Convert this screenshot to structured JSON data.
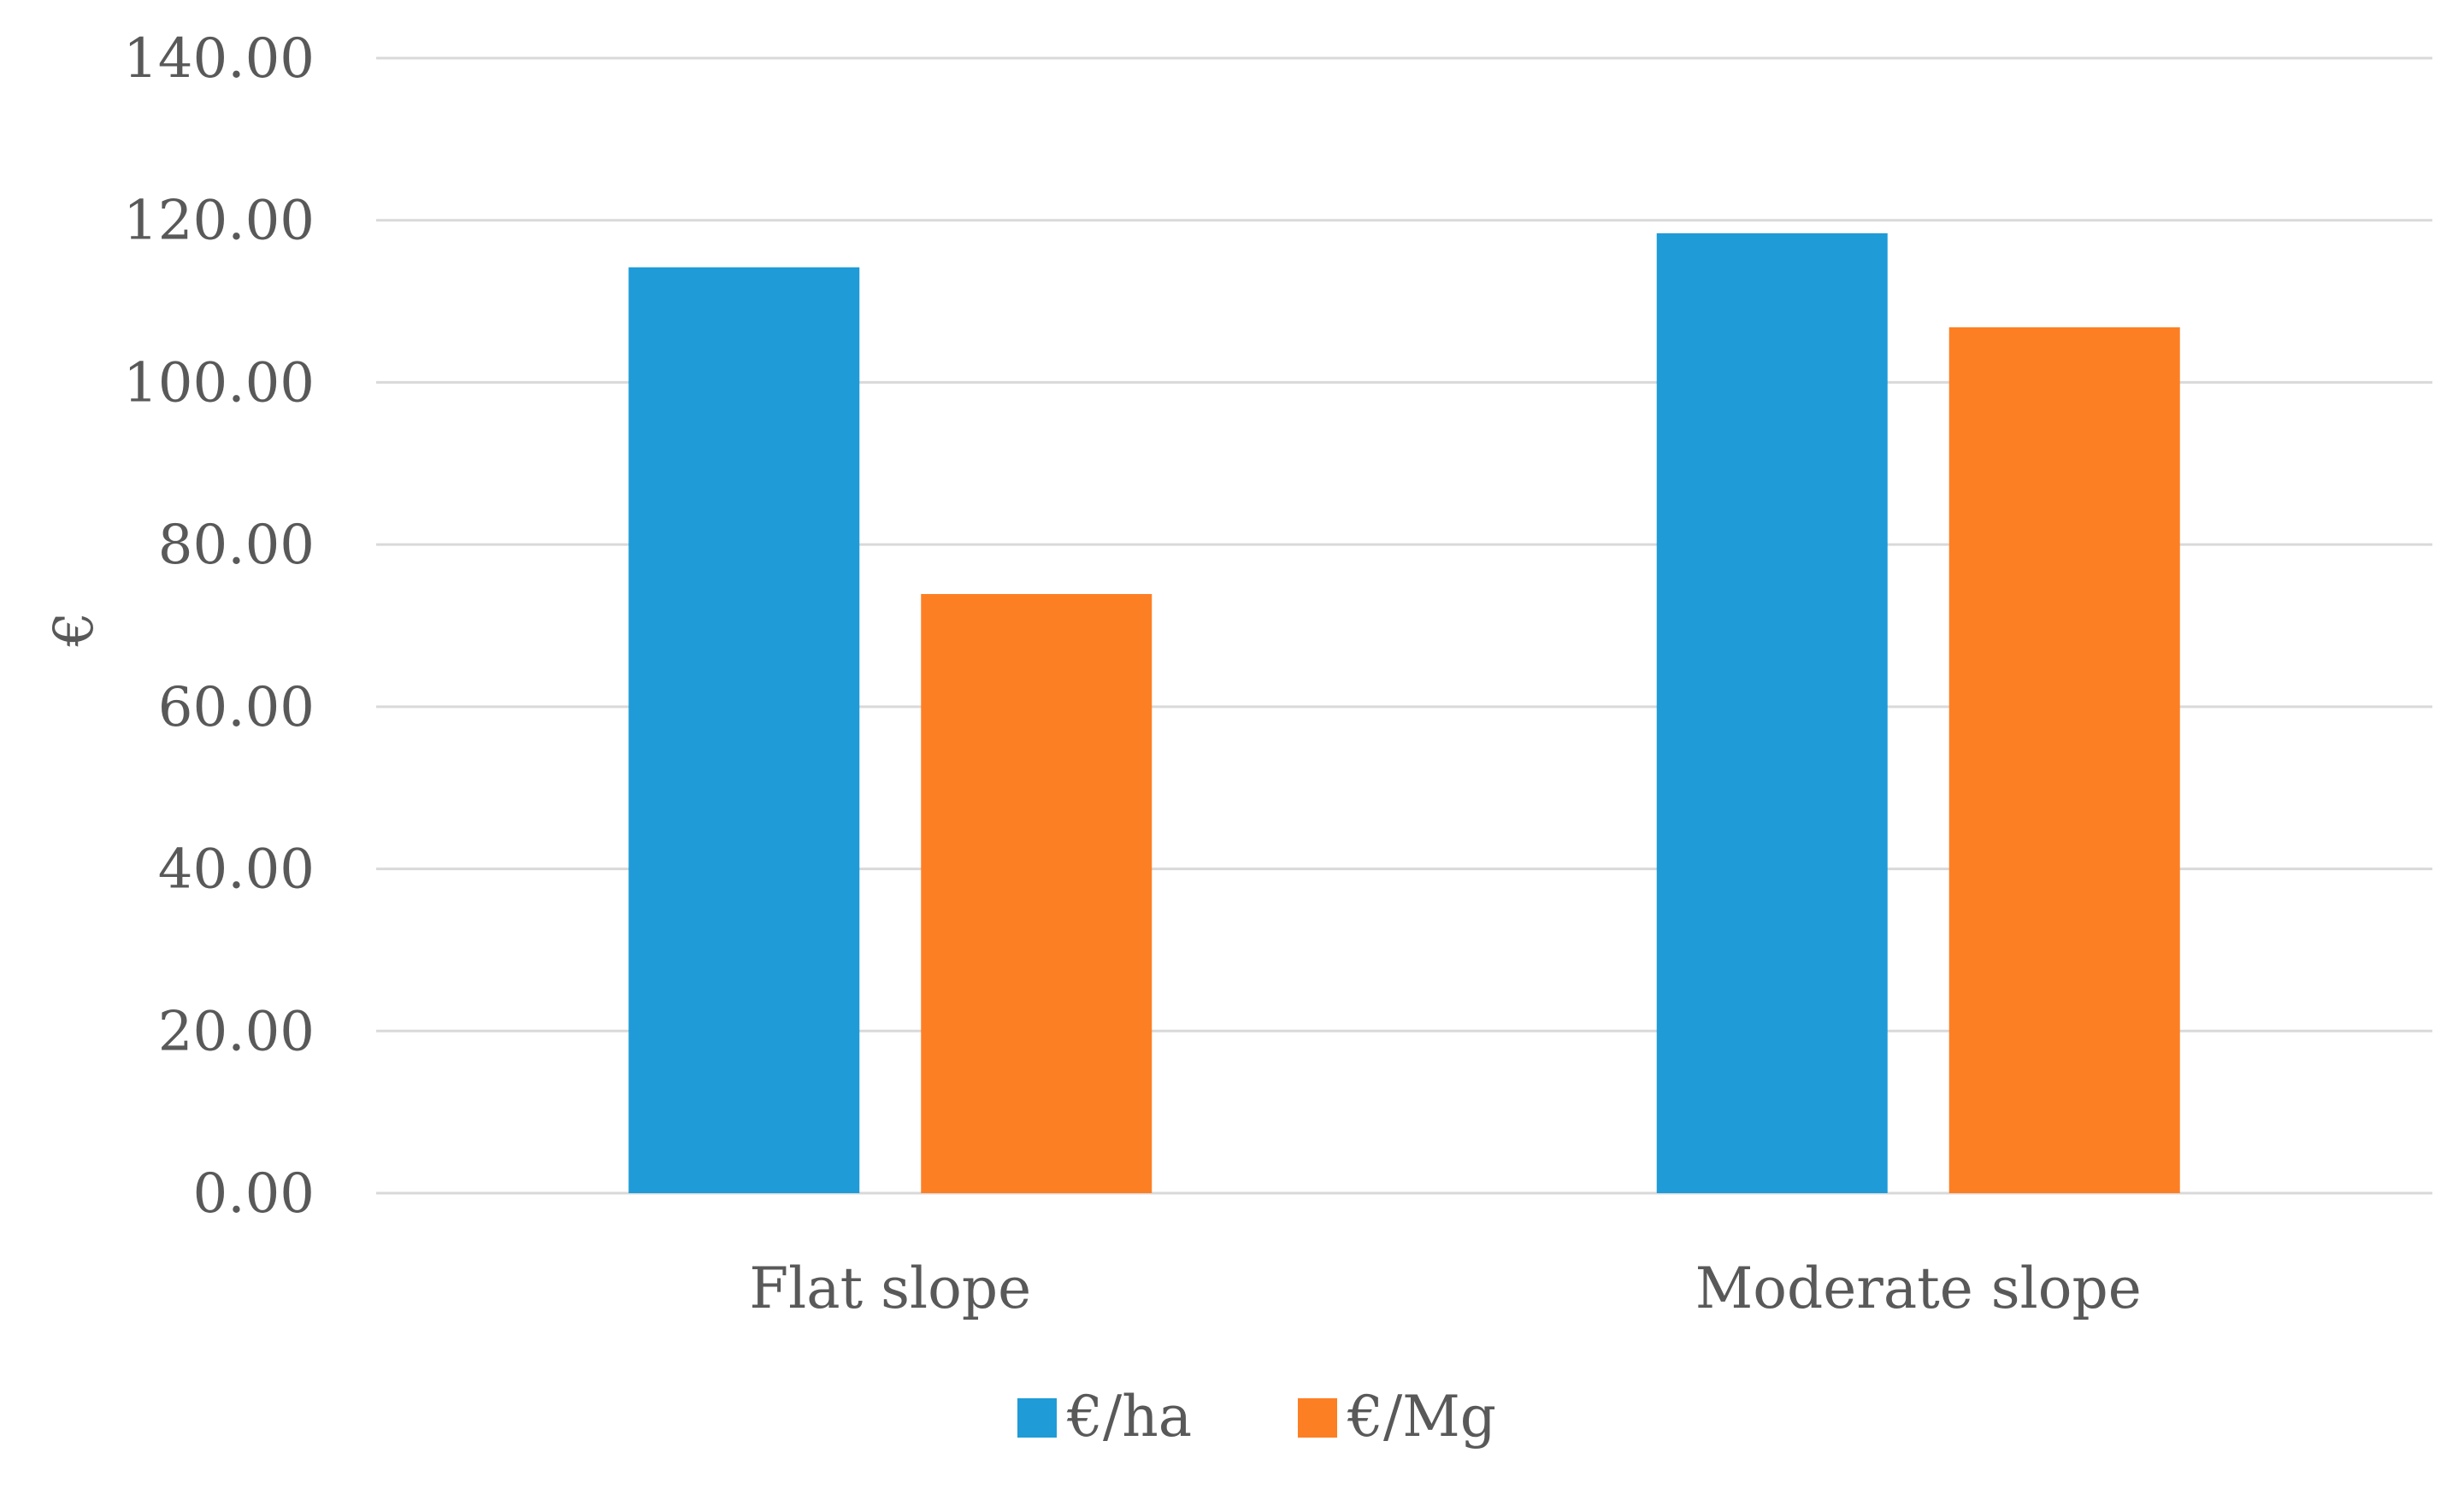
{
  "chart_data": {
    "type": "bar",
    "title": "",
    "xlabel": "",
    "ylabel": "€",
    "ylim": [
      0,
      140
    ],
    "y_ticks": [
      "0.00",
      "20.00",
      "40.00",
      "60.00",
      "80.00",
      "100.00",
      "120.00",
      "140.00"
    ],
    "categories": [
      "Flat slope",
      "Moderate slope"
    ],
    "series": [
      {
        "name": "€/ha",
        "color": "#1f9bd7",
        "values": [
          114.2,
          118.4
        ]
      },
      {
        "name": "€/Mg",
        "color": "#fd7f23",
        "values": [
          73.9,
          106.8
        ]
      }
    ],
    "grid": true,
    "legend": "bottom"
  }
}
